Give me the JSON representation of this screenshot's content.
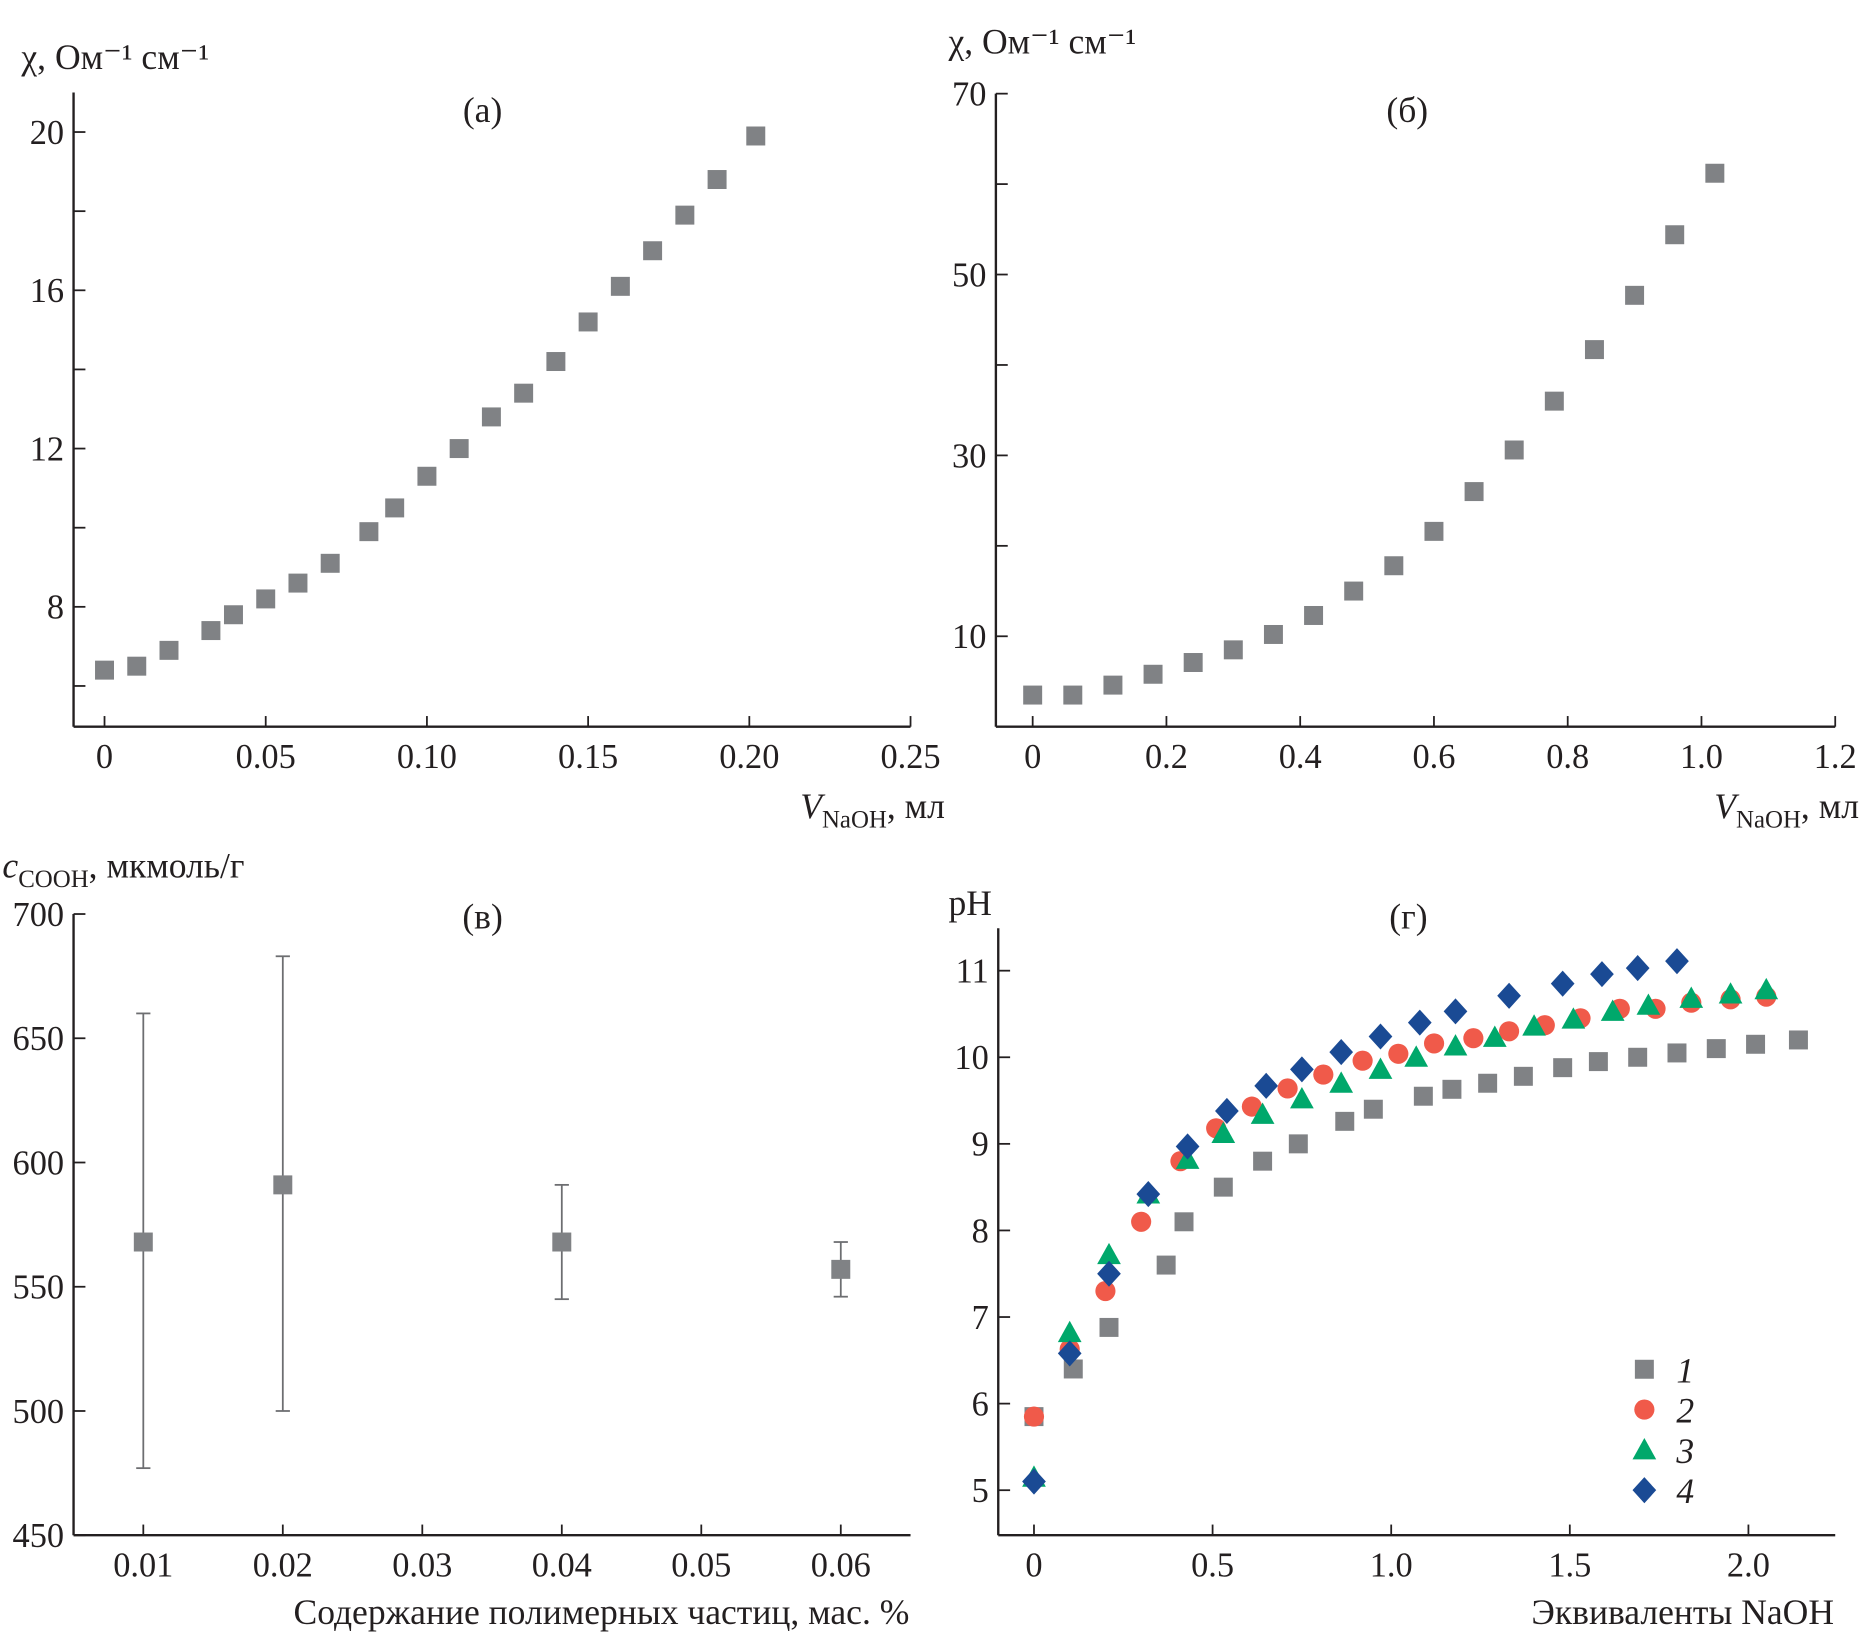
{
  "colors": {
    "axis": "#231f20",
    "series1": "#808285",
    "series2": "#f05a4a",
    "series3": "#00a86b",
    "series4": "#1a4a94"
  },
  "chart_data": [
    {
      "id": "a",
      "type": "scatter",
      "title": "(а)",
      "ylabel": "χ, Ом⁻¹ см⁻¹",
      "xlabel": {
        "var": "V",
        "sub": "NaOH",
        "rest": ", мл"
      },
      "xlim": [
        -0.0096,
        0.25
      ],
      "ylim": [
        4.97,
        21.0
      ],
      "xticks": [
        0,
        0.05,
        0.1,
        0.15,
        0.2,
        0.25
      ],
      "xticklabels": [
        "0",
        "0.05",
        "0.10",
        "0.15",
        "0.20",
        "0.25"
      ],
      "yticks": [
        6,
        8,
        10,
        12,
        14,
        16,
        18,
        20
      ],
      "yticklabels": [
        "",
        "8",
        "",
        "12",
        "",
        "16",
        "",
        "20"
      ],
      "series": [
        {
          "marker": "square",
          "color": "#808285",
          "x": [
            0,
            0.01,
            0.02,
            0.033,
            0.04,
            0.05,
            0.06,
            0.07,
            0.082,
            0.09,
            0.1,
            0.11,
            0.12,
            0.13,
            0.14,
            0.15,
            0.16,
            0.17,
            0.18,
            0.19,
            0.202
          ],
          "y": [
            6.4,
            6.5,
            6.9,
            7.4,
            7.8,
            8.2,
            8.6,
            9.1,
            9.9,
            10.5,
            11.3,
            12.0,
            12.8,
            13.4,
            14.2,
            15.2,
            16.1,
            17.0,
            17.9,
            18.8,
            19.9
          ]
        }
      ]
    },
    {
      "id": "b",
      "type": "scatter",
      "title": "(б)",
      "ylabel": "χ, Ом⁻¹ см⁻¹",
      "xlabel": {
        "var": "V",
        "sub": "NaOH",
        "rest": ", мл"
      },
      "xlim": [
        -0.055,
        1.2
      ],
      "ylim": [
        0,
        70
      ],
      "xticks": [
        0,
        0.2,
        0.4,
        0.6,
        0.8,
        1.0,
        1.2
      ],
      "xticklabels": [
        "0",
        "0.2",
        "0.4",
        "0.6",
        "0.8",
        "1.0",
        "1.2"
      ],
      "yticks": [
        10,
        20,
        30,
        40,
        50,
        60,
        70
      ],
      "yticklabels": [
        "10",
        "",
        "30",
        "",
        "50",
        "",
        "70"
      ],
      "series": [
        {
          "marker": "square",
          "color": "#808285",
          "x": [
            0,
            0.06,
            0.12,
            0.18,
            0.24,
            0.3,
            0.36,
            0.42,
            0.48,
            0.54,
            0.6,
            0.66,
            0.72,
            0.78,
            0.84,
            0.9,
            0.96,
            1.02
          ],
          "y": [
            3.5,
            3.5,
            4.6,
            5.8,
            7.1,
            8.5,
            10.2,
            12.3,
            15.0,
            17.8,
            21.6,
            26.0,
            30.6,
            36.0,
            41.7,
            47.7,
            54.4,
            61.2
          ]
        }
      ]
    },
    {
      "id": "v",
      "type": "scatter",
      "title": "(в)",
      "ylabel": {
        "var": "c",
        "sub": "COOH",
        "rest": ", мкмоль/г"
      },
      "xlabel": "Содержание полимерных частиц, мас. %",
      "xlim": [
        0.005,
        0.065
      ],
      "ylim": [
        450,
        700
      ],
      "xticks": [
        0.01,
        0.02,
        0.03,
        0.04,
        0.05,
        0.06
      ],
      "xticklabels": [
        "0.01",
        "0.02",
        "0.03",
        "0.04",
        "0.05",
        "0.06"
      ],
      "yticks": [
        450,
        500,
        550,
        600,
        650,
        700
      ],
      "yticklabels": [
        "450",
        "500",
        "550",
        "600",
        "650",
        "700"
      ],
      "series": [
        {
          "marker": "square",
          "color": "#808285",
          "x": [
            0.01,
            0.02,
            0.04,
            0.06
          ],
          "y": [
            568,
            591,
            568,
            557
          ],
          "err_low": [
            477,
            500,
            545,
            546
          ],
          "err_high": [
            660,
            683,
            591,
            568
          ]
        }
      ]
    },
    {
      "id": "g",
      "type": "scatter",
      "title": "(г)",
      "ylabel": "pH",
      "xlabel": "Эквиваленты NaOH",
      "xlim": [
        -0.1,
        2.243
      ],
      "ylim": [
        4.48,
        11.49
      ],
      "xticks": [
        0,
        0.5,
        1.0,
        1.5,
        2.0
      ],
      "xticklabels": [
        "0",
        "0.5",
        "1.0",
        "1.5",
        "2.0"
      ],
      "yticks": [
        5,
        6,
        7,
        8,
        9,
        10,
        11
      ],
      "yticklabels": [
        "5",
        "6",
        "7",
        "8",
        "9",
        "10",
        "11"
      ],
      "legend": {
        "placement": "bottom-right"
      },
      "series": [
        {
          "name": "1",
          "marker": "square",
          "color": "#808285",
          "x": [
            0,
            0.11,
            0.21,
            0.37,
            0.42,
            0.53,
            0.64,
            0.74,
            0.87,
            0.95,
            1.09,
            1.17,
            1.27,
            1.37,
            1.48,
            1.58,
            1.69,
            1.8,
            1.91,
            2.02,
            2.14
          ],
          "y": [
            5.85,
            6.4,
            6.88,
            7.6,
            8.1,
            8.5,
            8.8,
            9.0,
            9.26,
            9.4,
            9.55,
            9.63,
            9.7,
            9.78,
            9.88,
            9.95,
            10.0,
            10.05,
            10.1,
            10.15,
            10.2
          ]
        },
        {
          "name": "2",
          "marker": "circle",
          "color": "#f05a4a",
          "x": [
            0,
            0.1,
            0.2,
            0.3,
            0.41,
            0.51,
            0.61,
            0.71,
            0.81,
            0.92,
            1.02,
            1.12,
            1.23,
            1.33,
            1.43,
            1.53,
            1.64,
            1.74,
            1.84,
            1.95,
            2.05
          ],
          "y": [
            5.85,
            6.63,
            7.3,
            8.1,
            8.8,
            9.18,
            9.43,
            9.64,
            9.8,
            9.96,
            10.04,
            10.16,
            10.22,
            10.3,
            10.37,
            10.45,
            10.56,
            10.56,
            10.63,
            10.67,
            10.7
          ]
        },
        {
          "name": "3",
          "marker": "triangle",
          "color": "#00a86b",
          "x": [
            0,
            0.1,
            0.21,
            0.32,
            0.43,
            0.53,
            0.64,
            0.75,
            0.86,
            0.97,
            1.07,
            1.18,
            1.29,
            1.4,
            1.51,
            1.62,
            1.72,
            1.84,
            1.95,
            2.05
          ],
          "y": [
            5.15,
            6.82,
            7.72,
            8.42,
            8.82,
            9.12,
            9.34,
            9.52,
            9.7,
            9.86,
            10.0,
            10.13,
            10.23,
            10.36,
            10.44,
            10.53,
            10.6,
            10.68,
            10.73,
            10.78
          ]
        },
        {
          "name": "4",
          "marker": "diamond",
          "color": "#1a4a94",
          "x": [
            0,
            0.1,
            0.21,
            0.32,
            0.43,
            0.54,
            0.65,
            0.75,
            0.86,
            0.97,
            1.08,
            1.18,
            1.33,
            1.48,
            1.59,
            1.69,
            1.8
          ],
          "y": [
            5.1,
            6.58,
            7.5,
            8.42,
            8.97,
            9.38,
            9.67,
            9.86,
            10.06,
            10.24,
            10.4,
            10.53,
            10.71,
            10.85,
            10.96,
            11.03,
            11.11
          ]
        }
      ]
    }
  ]
}
